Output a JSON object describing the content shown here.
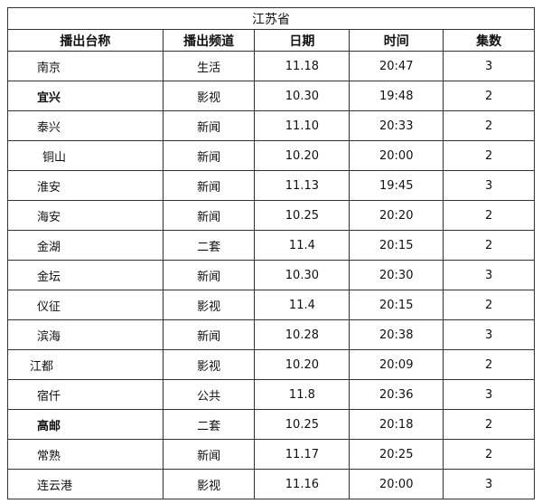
{
  "title": "江苏省",
  "headers": [
    "播出台称",
    "播出频道",
    "日期",
    "时间",
    "集数"
  ],
  "rows": [
    {
      "station": "南京",
      "channel": "生活",
      "date": "11.18",
      "time": "20:47",
      "episodes": "3"
    },
    {
      "station": "宜兴",
      "channel": "影视",
      "date": "10.30",
      "time": "19:48",
      "episodes": "2",
      "bold": true
    },
    {
      "station": "泰兴",
      "channel": "新闻",
      "date": "11.10",
      "time": "20:33",
      "episodes": "2"
    },
    {
      "station": "铜山",
      "channel": "新闻",
      "date": "10.20",
      "time": "20:00",
      "episodes": "2",
      "indent": "right"
    },
    {
      "station": "淮安",
      "channel": "新闻",
      "date": "11.13",
      "time": "19:45",
      "episodes": "3"
    },
    {
      "station": "海安",
      "channel": "新闻",
      "date": "10.25",
      "time": "20:20",
      "episodes": "2"
    },
    {
      "station": "金湖",
      "channel": "二套",
      "date": "11.4",
      "time": "20:15",
      "episodes": "2"
    },
    {
      "station": "金坛",
      "channel": "新闻",
      "date": "10.30",
      "time": "20:30",
      "episodes": "3"
    },
    {
      "station": "仪征",
      "channel": "影视",
      "date": "11.4",
      "time": "20:15",
      "episodes": "2"
    },
    {
      "station": "滨海",
      "channel": "新闻",
      "date": "10.28",
      "time": "20:38",
      "episodes": "3"
    },
    {
      "station": "江都",
      "channel": "影视",
      "date": "10.20",
      "time": "20:09",
      "episodes": "2",
      "indent": "left"
    },
    {
      "station": "宿仟",
      "channel": "公共",
      "date": "11.8",
      "time": "20:36",
      "episodes": "3"
    },
    {
      "station": "高邮",
      "channel": "二套",
      "date": "10.25",
      "time": "20:18",
      "episodes": "2",
      "bold": true
    },
    {
      "station": "常熟",
      "channel": "新闻",
      "date": "11.17",
      "time": "20:25",
      "episodes": "2"
    },
    {
      "station": "连云港",
      "channel": "影视",
      "date": "11.16",
      "time": "20:00",
      "episodes": "3"
    }
  ]
}
